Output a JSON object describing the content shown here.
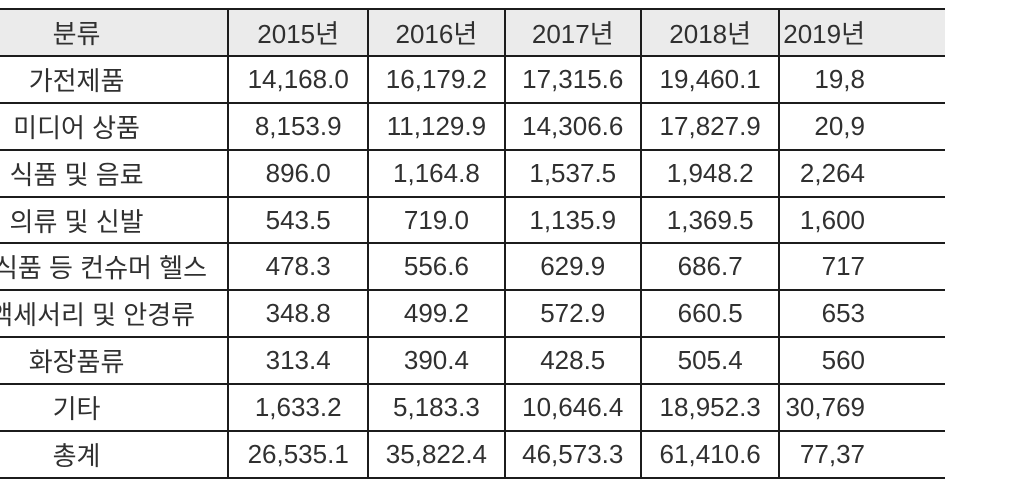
{
  "table": {
    "header": {
      "category_label": "분류",
      "year_labels": [
        "2015년",
        "2016년",
        "2017년",
        "2018년",
        "2019년"
      ]
    },
    "rows": [
      {
        "label": "가전제품",
        "values": [
          "14,168.0",
          "16,179.2",
          "17,315.6",
          "19,460.1",
          "19,8"
        ]
      },
      {
        "label": "미디어 상품",
        "values": [
          "8,153.9",
          "11,129.9",
          "14,306.6",
          "17,827.9",
          "20,9"
        ]
      },
      {
        "label": "식품 및 음료",
        "values": [
          "896.0",
          "1,164.8",
          "1,537.5",
          "1,948.2",
          "2,264"
        ]
      },
      {
        "label": "의류 및 신발",
        "values": [
          "543.5",
          "719.0",
          "1,135.9",
          "1,369.5",
          "1,600"
        ]
      },
      {
        "label": "기능식품 등 컨슈머 헬스",
        "values": [
          "478.3",
          "556.6",
          "629.9",
          "686.7",
          "717"
        ]
      },
      {
        "label": "인 액세서리 및 안경류",
        "values": [
          "348.8",
          "499.2",
          "572.9",
          "660.5",
          "653"
        ]
      },
      {
        "label": "화장품류",
        "values": [
          "313.4",
          "390.4",
          "428.5",
          "505.4",
          "560"
        ]
      },
      {
        "label": "기타",
        "values": [
          "1,633.2",
          "5,183.3",
          "10,646.4",
          "18,952.3",
          "30,769"
        ]
      },
      {
        "label": "총계",
        "values": [
          "26,535.1",
          "35,822.4",
          "46,573.3",
          "61,410.6",
          "77,37"
        ]
      }
    ]
  },
  "colors": {
    "border": "#1c1c1c",
    "header_background": "#ebebeb",
    "text": "#303030",
    "background": "#ffffff"
  },
  "chart_data": {
    "type": "table",
    "title": "",
    "columns": [
      "분류",
      "2015년",
      "2016년",
      "2017년",
      "2018년",
      "2019년"
    ],
    "categories": [
      "가전제품",
      "미디어 상품",
      "식품 및 음료",
      "의류 및 신발",
      "기능식품 등 컨슈머 헬스",
      "인 액세서리 및 안경류",
      "화장품류",
      "기타",
      "총계"
    ],
    "series": [
      {
        "name": "2015년",
        "values": [
          14168.0,
          8153.9,
          896.0,
          543.5,
          478.3,
          348.8,
          313.4,
          1633.2,
          26535.1
        ]
      },
      {
        "name": "2016년",
        "values": [
          16179.2,
          11129.9,
          1164.8,
          719.0,
          556.6,
          499.2,
          390.4,
          5183.3,
          35822.4
        ]
      },
      {
        "name": "2017년",
        "values": [
          17315.6,
          14306.6,
          1537.5,
          1135.9,
          629.9,
          572.9,
          428.5,
          10646.4,
          46573.3
        ]
      },
      {
        "name": "2018년",
        "values": [
          19460.1,
          17827.9,
          1948.2,
          1369.5,
          686.7,
          660.5,
          505.4,
          18952.3,
          61410.6
        ]
      },
      {
        "name": "2019년 (clipped at right edge)",
        "values": [
          "19,8…",
          "20,9…",
          "2,264…",
          "1,600…",
          "717…",
          "653…",
          "560…",
          "30,769…",
          "77,37…"
        ]
      }
    ],
    "layout_hints": {
      "header_fill": "#ebebeb",
      "grid": "all-borders",
      "left_edge_clipped": true,
      "right_edge_clipped": true
    }
  }
}
